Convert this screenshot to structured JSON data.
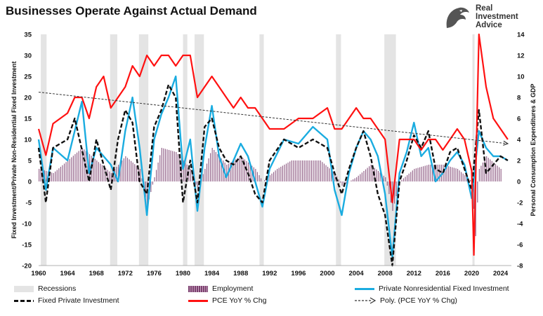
{
  "title": "Businesses Operate Against Actual Demand",
  "logo": {
    "line1": "Real",
    "line2": "Investment",
    "line3": "Advice",
    "icon": "eagle-head-icon"
  },
  "chart_data": {
    "type": "line",
    "title": "Businesses Operate Against Actual Demand",
    "xlabel": "",
    "ylabel_left": "Fixed Investment/Private Non-Residential Fixed Investment",
    "ylabel_right": "Personal Consumption Expenditures & GDP",
    "xlim": [
      1960,
      2025.5
    ],
    "ylim_left": [
      -20,
      35
    ],
    "ylim_right": [
      -8,
      14
    ],
    "x_ticks": [
      "1960",
      "1964",
      "1968",
      "1972",
      "1976",
      "1980",
      "1984",
      "1988",
      "1992",
      "1996",
      "2000",
      "2004",
      "2008",
      "2012",
      "2016",
      "2020",
      "2024"
    ],
    "y_ticks_left": [
      "35",
      "30",
      "25",
      "20",
      "15",
      "10",
      "5",
      "0",
      "-5",
      "-10",
      "-15",
      "-20"
    ],
    "y_ticks_right": [
      "14",
      "12",
      "10",
      "8",
      "6",
      "4",
      "2",
      "0",
      "-2",
      "-4",
      "-6",
      "-8"
    ],
    "grid": false,
    "legend_position": "bottom",
    "recessions": [
      [
        1960.3,
        1961.1
      ],
      [
        1969.9,
        1970.9
      ],
      [
        1973.9,
        1975.2
      ],
      [
        1980.0,
        1980.6
      ],
      [
        1981.6,
        1982.9
      ],
      [
        1990.6,
        1991.2
      ],
      [
        2001.2,
        2001.9
      ],
      [
        2007.9,
        2009.5
      ],
      [
        2020.1,
        2020.4
      ]
    ],
    "series": [
      {
        "name": "Employment",
        "axis": "left",
        "style": "bars",
        "color": "#7b3f6e",
        "x": [
          1960,
          1962,
          1964,
          1966,
          1968,
          1970,
          1972,
          1974,
          1975,
          1977,
          1979,
          1981,
          1982,
          1984,
          1986,
          1988,
          1990,
          1991,
          1993,
          1995,
          1997,
          1999,
          2001,
          2002,
          2004,
          2006,
          2008,
          2009,
          2010,
          2012,
          2014,
          2016,
          2018,
          2020,
          2020.5,
          2021,
          2022,
          2024
        ],
        "values": [
          3,
          2,
          5,
          8,
          5,
          2,
          6,
          3,
          -6,
          8,
          7,
          3,
          -2,
          8,
          4,
          6,
          3,
          0,
          3,
          5,
          5,
          5,
          2,
          -1,
          1,
          4,
          1,
          -7,
          0,
          3,
          4,
          4,
          3,
          0,
          -13,
          3,
          6,
          3
        ]
      },
      {
        "name": "Private Nonresidential Fixed Investment",
        "axis": "left",
        "style": "solid",
        "color": "#1aace0",
        "x": [
          1960,
          1961,
          1962,
          1964,
          1966,
          1967,
          1968,
          1970,
          1971,
          1972,
          1973,
          1974,
          1975,
          1976,
          1977,
          1978,
          1979,
          1980,
          1981,
          1982,
          1983,
          1984,
          1985,
          1986,
          1987,
          1988,
          1989,
          1990,
          1991,
          1992,
          1994,
          1996,
          1998,
          2000,
          2001,
          2002,
          2003,
          2004,
          2005,
          2006,
          2007,
          2008,
          2009,
          2010,
          2011,
          2012,
          2013,
          2014,
          2015,
          2016,
          2017,
          2018,
          2019,
          2020,
          2021,
          2022,
          2023,
          2024,
          2025
        ],
        "values": [
          10,
          -2,
          8,
          5,
          19,
          2,
          8,
          4,
          0,
          12,
          20,
          8,
          -8,
          10,
          16,
          20,
          25,
          3,
          10,
          -7,
          8,
          18,
          6,
          1,
          5,
          9,
          6,
          0,
          -6,
          3,
          10,
          9,
          13,
          10,
          -2,
          -8,
          2,
          8,
          12,
          10,
          6,
          -3,
          -18,
          2,
          7,
          14,
          6,
          8,
          0,
          2,
          5,
          7,
          4,
          -4,
          12,
          8,
          6,
          6,
          5
        ]
      },
      {
        "name": "Fixed Private Investment",
        "axis": "left",
        "style": "dashed",
        "color": "#111111",
        "x": [
          1960,
          1961,
          1962,
          1964,
          1965,
          1967,
          1968,
          1970,
          1971,
          1972,
          1973,
          1974,
          1975,
          1976,
          1977,
          1978,
          1979,
          1980,
          1981,
          1982,
          1983,
          1984,
          1985,
          1986,
          1987,
          1988,
          1989,
          1990,
          1991,
          1992,
          1994,
          1996,
          1998,
          2000,
          2001,
          2002,
          2003,
          2004,
          2005,
          2006,
          2007,
          2008,
          2009,
          2010,
          2011,
          2012,
          2013,
          2014,
          2015,
          2016,
          2017,
          2018,
          2019,
          2020,
          2021,
          2022,
          2023,
          2024,
          2025
        ],
        "values": [
          8,
          -5,
          8,
          10,
          15,
          0,
          10,
          -2,
          10,
          17,
          14,
          0,
          -3,
          13,
          17,
          23,
          20,
          -5,
          5,
          -5,
          13,
          15,
          8,
          5,
          4,
          6,
          2,
          -3,
          -5,
          5,
          10,
          8,
          10,
          8,
          2,
          -3,
          3,
          8,
          12,
          6,
          -3,
          -8,
          -20,
          0,
          5,
          11,
          8,
          12,
          3,
          2,
          7,
          8,
          3,
          -2,
          17,
          2,
          4,
          6,
          5
        ]
      },
      {
        "name": "PCE YoY % Chg",
        "axis": "right",
        "style": "solid",
        "color": "#ff1111",
        "x": [
          1960,
          1961,
          1962,
          1964,
          1965,
          1966,
          1967,
          1968,
          1969,
          1970,
          1971,
          1972,
          1973,
          1974,
          1975,
          1976,
          1977,
          1978,
          1979,
          1980,
          1981,
          1982,
          1983,
          1984,
          1985,
          1986,
          1987,
          1988,
          1989,
          1990,
          1991,
          1992,
          1994,
          1996,
          1998,
          2000,
          2001,
          2002,
          2004,
          2005,
          2006,
          2007,
          2008,
          2009,
          2010,
          2011,
          2012,
          2013,
          2014,
          2015,
          2016,
          2017,
          2018,
          2019,
          2020,
          2020.3,
          2021,
          2022,
          2023,
          2024,
          2025
        ],
        "values": [
          5,
          2.5,
          5.5,
          6.5,
          8,
          8,
          6,
          9,
          10,
          7,
          8,
          9,
          11,
          10,
          12,
          11,
          12,
          12,
          11,
          12,
          12,
          8,
          9,
          10,
          9,
          8,
          7,
          8,
          7,
          7,
          6,
          5,
          5,
          6,
          6,
          7,
          5,
          5,
          7,
          6,
          6,
          5,
          4,
          -2,
          4,
          4,
          4,
          3,
          4,
          4,
          3,
          4,
          5,
          4,
          1,
          -7,
          14,
          9,
          6,
          5,
          4
        ]
      },
      {
        "name": "Poly. (PCE YoY % Chg)",
        "axis": "right",
        "style": "dashed-arrow",
        "color": "#333333",
        "x": [
          1960,
          2025
        ],
        "values": [
          8.5,
          3.6
        ]
      }
    ]
  },
  "legend": [
    {
      "label": "Recessions",
      "icon": "recession-swatch"
    },
    {
      "label": "Employment",
      "icon": "employment-swatch"
    },
    {
      "label": "Private Nonresidential Fixed Investment",
      "icon": "blue-line-swatch"
    },
    {
      "label": "Fixed Private Investment",
      "icon": "black-dash-swatch"
    },
    {
      "label": "PCE YoY % Chg",
      "icon": "red-line-swatch"
    },
    {
      "label": "Poly. (PCE YoY % Chg)",
      "icon": "trend-arrow-swatch"
    }
  ]
}
